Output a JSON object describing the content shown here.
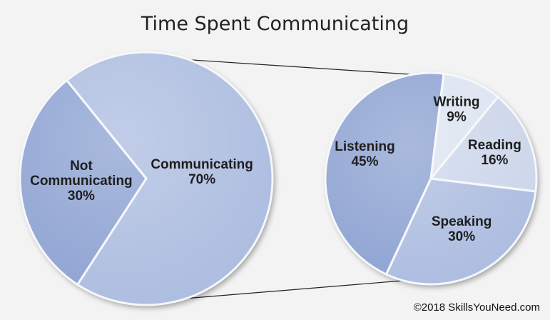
{
  "title": "Time Spent Communicating",
  "copyright": "©2018 SkillsYouNeed.com",
  "colors": {
    "background": "#f3f3f3",
    "dark_blue": "#8ea3d2",
    "mid_blue": "#adbde0",
    "light_blue": "#dce4f1",
    "pale_blue": "#ccd6ea",
    "connector": "#222222"
  },
  "chart_data": [
    {
      "type": "pie",
      "slices": [
        {
          "label_lines": [
            "Communicating",
            "70%"
          ],
          "category": "Communicating",
          "value": 70,
          "color": "#adbde0"
        },
        {
          "label_lines": [
            "Not",
            "Communicating",
            "30%"
          ],
          "category": "Not Communicating",
          "value": 30,
          "color": "#8ea3d2"
        }
      ]
    },
    {
      "type": "pie",
      "slices": [
        {
          "label_lines": [
            "Listening",
            "45%"
          ],
          "category": "Listening",
          "value": 45,
          "color": "#8ea3d2"
        },
        {
          "label_lines": [
            "Writing",
            "9%"
          ],
          "category": "Writing",
          "value": 9,
          "color": "#dce4f1"
        },
        {
          "label_lines": [
            "Reading",
            "16%"
          ],
          "category": "Reading",
          "value": 16,
          "color": "#ccd6ea"
        },
        {
          "label_lines": [
            "Speaking",
            "30%"
          ],
          "category": "Speaking",
          "value": 30,
          "color": "#adbde0"
        }
      ]
    }
  ]
}
